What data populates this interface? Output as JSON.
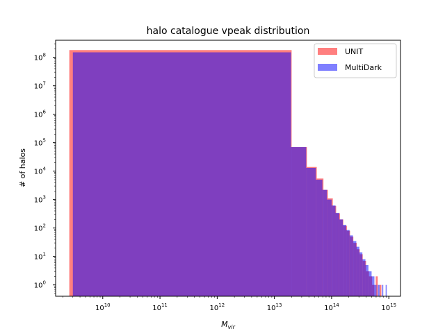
{
  "chart_data": {
    "type": "bar",
    "title": "halo catalogue vpeak distribution",
    "xlabel": "M",
    "xlabel_subscript": "vir",
    "ylabel": "# of halos",
    "xscale": "log",
    "yscale": "log",
    "xlim": [
      1500000000.0,
      1600000000000000.0
    ],
    "ylim": [
      0.4,
      400000000.0
    ],
    "x_ticks": [
      {
        "value": 10000000000.0,
        "base": "10",
        "exp": "10"
      },
      {
        "value": 100000000000.0,
        "base": "10",
        "exp": "11"
      },
      {
        "value": 1000000000000.0,
        "base": "10",
        "exp": "12"
      },
      {
        "value": 10000000000000.0,
        "base": "10",
        "exp": "13"
      },
      {
        "value": 100000000000000.0,
        "base": "10",
        "exp": "14"
      },
      {
        "value": 1000000000000000.0,
        "base": "10",
        "exp": "15"
      }
    ],
    "y_ticks": [
      {
        "value": 1,
        "base": "10",
        "exp": "0"
      },
      {
        "value": 10,
        "base": "10",
        "exp": "1"
      },
      {
        "value": 100,
        "base": "10",
        "exp": "2"
      },
      {
        "value": 1000,
        "base": "10",
        "exp": "3"
      },
      {
        "value": 10000,
        "base": "10",
        "exp": "4"
      },
      {
        "value": 100000,
        "base": "10",
        "exp": "5"
      },
      {
        "value": 1000000,
        "base": "10",
        "exp": "6"
      },
      {
        "value": 10000000,
        "base": "10",
        "exp": "7"
      },
      {
        "value": 100000000,
        "base": "10",
        "exp": "8"
      }
    ],
    "legend_position": "top-right",
    "series": [
      {
        "name": "UNIT",
        "color": "#ff0000",
        "opacity": 0.5,
        "bins": [
          {
            "x0": 2600000000.0,
            "x1": 20000000000000.0,
            "y": 180000000.0
          },
          {
            "x0": 20000000000000.0,
            "x1": 37000000000000.0,
            "y": 70000
          },
          {
            "x0": 37000000000000.0,
            "x1": 55000000000000.0,
            "y": 14000
          },
          {
            "x0": 55000000000000.0,
            "x1": 72000000000000.0,
            "y": 5500
          },
          {
            "x0": 72000000000000.0,
            "x1": 86000000000000.0,
            "y": 2200
          },
          {
            "x0": 86000000000000.0,
            "x1": 105000000000000.0,
            "y": 1100
          },
          {
            "x0": 105000000000000.0,
            "x1": 120000000000000.0,
            "y": 600
          },
          {
            "x0": 120000000000000.0,
            "x1": 140000000000000.0,
            "y": 330
          },
          {
            "x0": 140000000000000.0,
            "x1": 160000000000000.0,
            "y": 200
          },
          {
            "x0": 160000000000000.0,
            "x1": 185000000000000.0,
            "y": 120
          },
          {
            "x0": 185000000000000.0,
            "x1": 210000000000000.0,
            "y": 80
          },
          {
            "x0": 210000000000000.0,
            "x1": 240000000000000.0,
            "y": 50
          },
          {
            "x0": 240000000000000.0,
            "x1": 275000000000000.0,
            "y": 30
          },
          {
            "x0": 275000000000000.0,
            "x1": 310000000000000.0,
            "y": 18
          },
          {
            "x0": 310000000000000.0,
            "x1": 350000000000000.0,
            "y": 12
          },
          {
            "x0": 350000000000000.0,
            "x1": 400000000000000.0,
            "y": 7
          },
          {
            "x0": 400000000000000.0,
            "x1": 450000000000000.0,
            "y": 3
          },
          {
            "x0": 450000000000000.0,
            "x1": 510000000000000.0,
            "y": 2
          },
          {
            "x0": 510000000000000.0,
            "x1": 560000000000000.0,
            "y": 1
          },
          {
            "x0": 590000000000000.0,
            "x1": 640000000000000.0,
            "y": 2
          },
          {
            "x0": 690000000000000.0,
            "x1": 740000000000000.0,
            "y": 1
          }
        ]
      },
      {
        "name": "MultiDark",
        "color": "#0000ff",
        "opacity": 0.5,
        "bins": [
          {
            "x0": 3000000000.0,
            "x1": 19500000000000.0,
            "y": 150000000.0
          },
          {
            "x0": 19500000000000.0,
            "x1": 36000000000000.0,
            "y": 70000
          },
          {
            "x0": 36000000000000.0,
            "x1": 53000000000000.0,
            "y": 13000
          },
          {
            "x0": 53000000000000.0,
            "x1": 69000000000000.0,
            "y": 5000
          },
          {
            "x0": 69000000000000.0,
            "x1": 83000000000000.0,
            "y": 2200
          },
          {
            "x0": 83000000000000.0,
            "x1": 100000000000000.0,
            "y": 1000
          },
          {
            "x0": 100000000000000.0,
            "x1": 117000000000000.0,
            "y": 620
          },
          {
            "x0": 117000000000000.0,
            "x1": 136000000000000.0,
            "y": 340
          },
          {
            "x0": 136000000000000.0,
            "x1": 157000000000000.0,
            "y": 200
          },
          {
            "x0": 157000000000000.0,
            "x1": 180000000000000.0,
            "y": 130
          },
          {
            "x0": 180000000000000.0,
            "x1": 206000000000000.0,
            "y": 85
          },
          {
            "x0": 206000000000000.0,
            "x1": 236000000000000.0,
            "y": 55
          },
          {
            "x0": 236000000000000.0,
            "x1": 270000000000000.0,
            "y": 35
          },
          {
            "x0": 270000000000000.0,
            "x1": 305000000000000.0,
            "y": 22
          },
          {
            "x0": 305000000000000.0,
            "x1": 345000000000000.0,
            "y": 14
          },
          {
            "x0": 345000000000000.0,
            "x1": 390000000000000.0,
            "y": 8
          },
          {
            "x0": 390000000000000.0,
            "x1": 440000000000000.0,
            "y": 5
          },
          {
            "x0": 440000000000000.0,
            "x1": 500000000000000.0,
            "y": 3
          },
          {
            "x0": 500000000000000.0,
            "x1": 560000000000000.0,
            "y": 2
          },
          {
            "x0": 560000000000000.0,
            "x1": 610000000000000.0,
            "y": 1
          },
          {
            "x0": 640000000000000.0,
            "x1": 690000000000000.0,
            "y": 1
          },
          {
            "x0": 760000000000000.0,
            "x1": 800000000000000.0,
            "y": 1
          },
          {
            "x0": 880000000000000.0,
            "x1": 920000000000000.0,
            "y": 1
          }
        ]
      }
    ]
  }
}
